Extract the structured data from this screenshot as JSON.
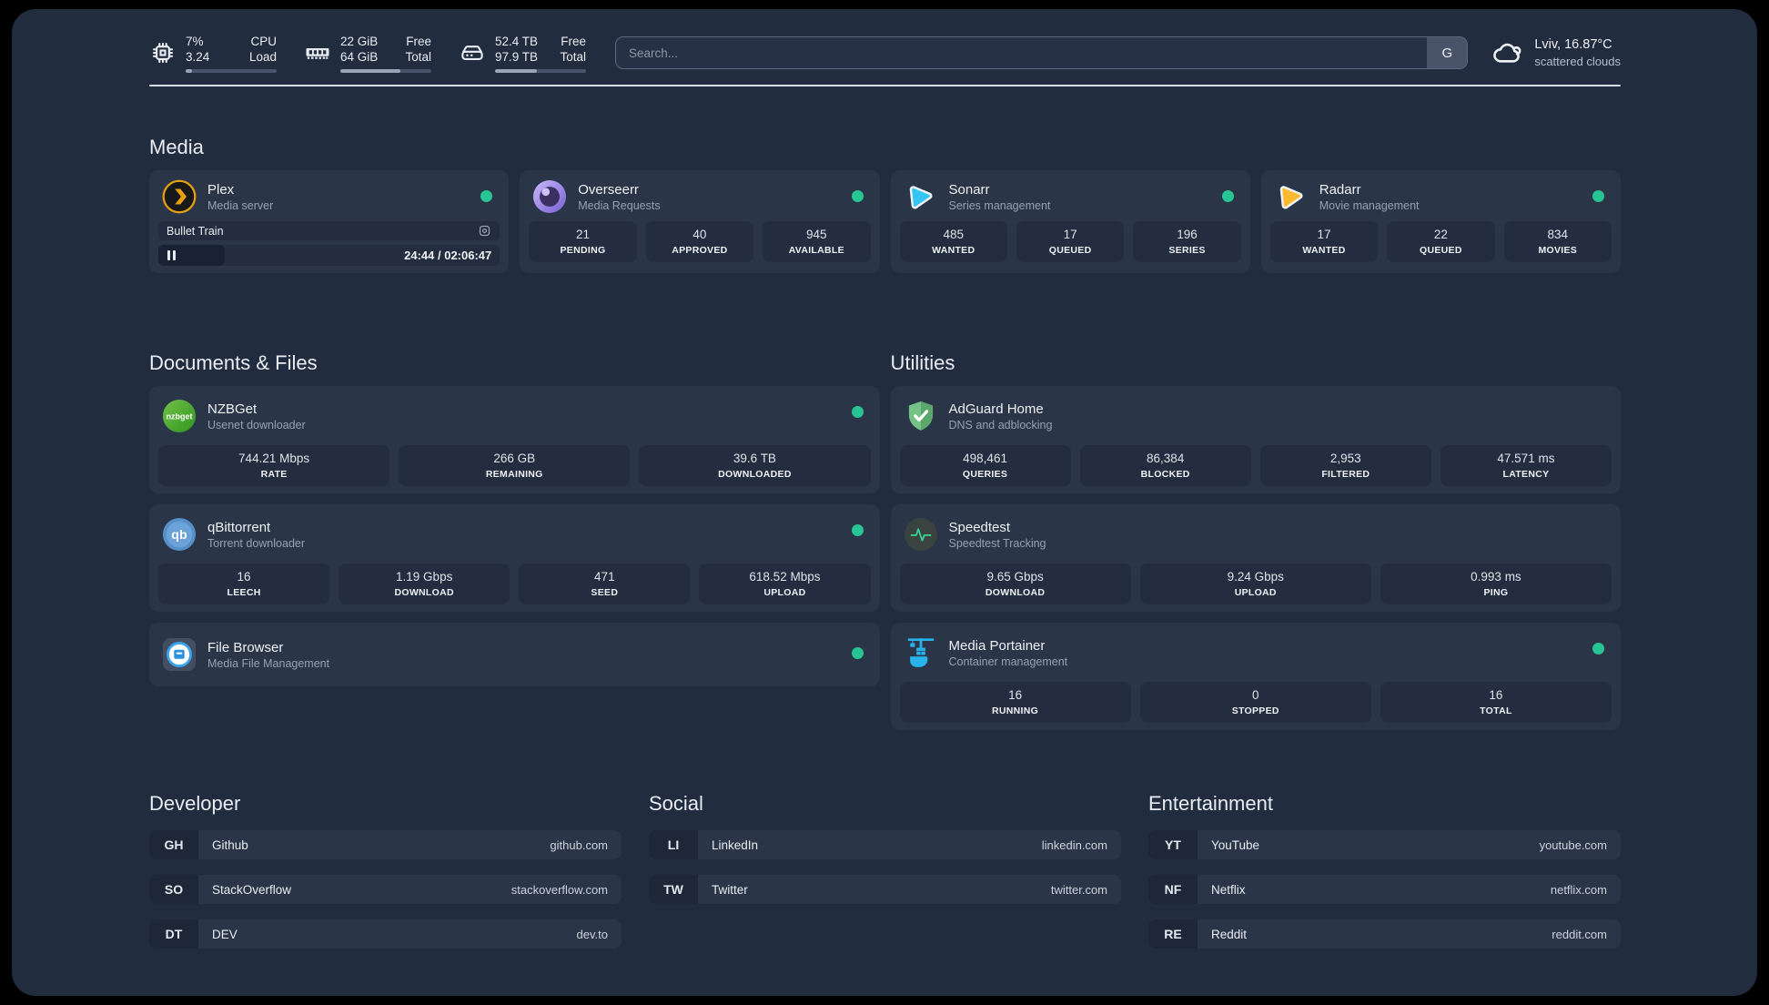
{
  "header": {
    "widgets": [
      {
        "icon": "cpu-icon",
        "col1": [
          "7%",
          "3.24"
        ],
        "col2": [
          "CPU",
          "Load"
        ],
        "progress_pct": 7
      },
      {
        "icon": "memory-icon",
        "col1": [
          "22 GiB",
          "64 GiB"
        ],
        "col2": [
          "Free",
          "Total"
        ],
        "progress_pct": 66
      },
      {
        "icon": "disk-icon",
        "col1": [
          "52.4 TB",
          "97.9 TB"
        ],
        "col2": [
          "Free",
          "Total"
        ],
        "progress_pct": 46
      }
    ],
    "search": {
      "placeholder": "Search...",
      "provider_label": "G"
    },
    "weather": {
      "location": "Lviv, 16.87°C",
      "condition": "scattered clouds"
    }
  },
  "sections": {
    "media": {
      "title": "Media",
      "plex": {
        "name": "Plex",
        "description": "Media server",
        "status": "online",
        "now_playing": {
          "title": "Bullet Train",
          "time_display": "24:44 / 02:06:47",
          "progress_pct": 19.5
        }
      },
      "overseerr": {
        "name": "Overseerr",
        "description": "Media Requests",
        "status": "online",
        "stats": [
          {
            "value": "21",
            "label": "PENDING"
          },
          {
            "value": "40",
            "label": "APPROVED"
          },
          {
            "value": "945",
            "label": "AVAILABLE"
          }
        ]
      },
      "sonarr": {
        "name": "Sonarr",
        "description": "Series management",
        "status": "online",
        "stats": [
          {
            "value": "485",
            "label": "WANTED"
          },
          {
            "value": "17",
            "label": "QUEUED"
          },
          {
            "value": "196",
            "label": "SERIES"
          }
        ]
      },
      "radarr": {
        "name": "Radarr",
        "description": "Movie management",
        "status": "online",
        "stats": [
          {
            "value": "17",
            "label": "WANTED"
          },
          {
            "value": "22",
            "label": "QUEUED"
          },
          {
            "value": "834",
            "label": "MOVIES"
          }
        ]
      }
    },
    "documents": {
      "title": "Documents & Files",
      "nzbget": {
        "name": "NZBGet",
        "description": "Usenet downloader",
        "status": "online",
        "stats": [
          {
            "value": "744.21 Mbps",
            "label": "RATE"
          },
          {
            "value": "266 GB",
            "label": "REMAINING"
          },
          {
            "value": "39.6 TB",
            "label": "DOWNLOADED"
          }
        ]
      },
      "qbittorrent": {
        "name": "qBittorrent",
        "description": "Torrent downloader",
        "status": "online",
        "stats": [
          {
            "value": "16",
            "label": "LEECH"
          },
          {
            "value": "1.19 Gbps",
            "label": "DOWNLOAD"
          },
          {
            "value": "471",
            "label": "SEED"
          },
          {
            "value": "618.52 Mbps",
            "label": "UPLOAD"
          }
        ]
      },
      "filebrowser": {
        "name": "File Browser",
        "description": "Media File Management",
        "status": "online"
      }
    },
    "utilities": {
      "title": "Utilities",
      "adguard": {
        "name": "AdGuard Home",
        "description": "DNS and adblocking",
        "stats": [
          {
            "value": "498,461",
            "label": "QUERIES"
          },
          {
            "value": "86,384",
            "label": "BLOCKED"
          },
          {
            "value": "2,953",
            "label": "FILTERED"
          },
          {
            "value": "47.571 ms",
            "label": "LATENCY"
          }
        ]
      },
      "speedtest": {
        "name": "Speedtest",
        "description": "Speedtest Tracking",
        "stats": [
          {
            "value": "9.65 Gbps",
            "label": "DOWNLOAD"
          },
          {
            "value": "9.24 Gbps",
            "label": "UPLOAD"
          },
          {
            "value": "0.993 ms",
            "label": "PING"
          }
        ]
      },
      "portainer": {
        "name": "Media Portainer",
        "description": "Container management",
        "status": "online",
        "stats": [
          {
            "value": "16",
            "label": "RUNNING"
          },
          {
            "value": "0",
            "label": "STOPPED"
          },
          {
            "value": "16",
            "label": "TOTAL"
          }
        ]
      }
    },
    "bookmarks": [
      {
        "title": "Developer",
        "links": [
          {
            "abbr": "GH",
            "name": "Github",
            "domain": "github.com"
          },
          {
            "abbr": "SO",
            "name": "StackOverflow",
            "domain": "stackoverflow.com"
          },
          {
            "abbr": "DT",
            "name": "DEV",
            "domain": "dev.to"
          }
        ]
      },
      {
        "title": "Social",
        "links": [
          {
            "abbr": "LI",
            "name": "LinkedIn",
            "domain": "linkedin.com"
          },
          {
            "abbr": "TW",
            "name": "Twitter",
            "domain": "twitter.com"
          }
        ]
      },
      {
        "title": "Entertainment",
        "links": [
          {
            "abbr": "YT",
            "name": "YouTube",
            "domain": "youtube.com"
          },
          {
            "abbr": "NF",
            "name": "Netflix",
            "domain": "netflix.com"
          },
          {
            "abbr": "RE",
            "name": "Reddit",
            "domain": "reddit.com"
          }
        ]
      }
    ]
  },
  "theme": {
    "page_bg": "#212c3f",
    "card_bg": "#2a3548",
    "stat_bg": "#232d3f",
    "status_green": "#27c593",
    "muted_text": "#97a1b2"
  }
}
